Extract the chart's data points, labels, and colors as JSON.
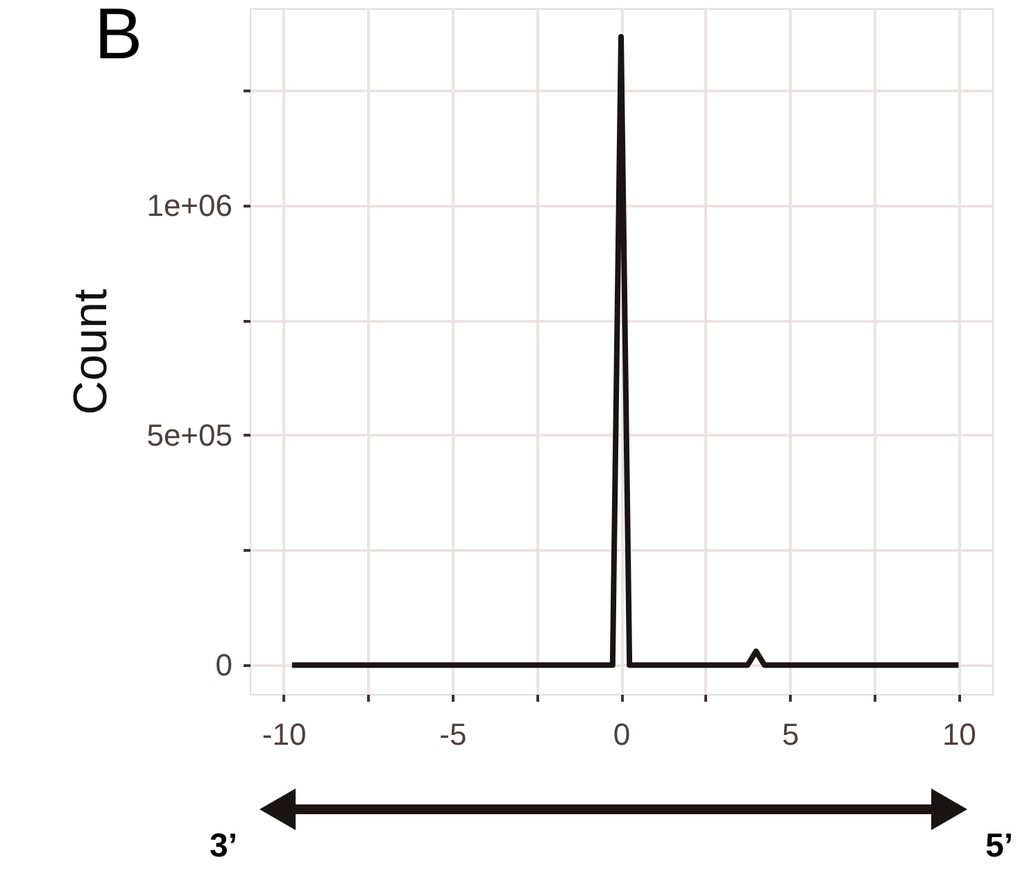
{
  "chart_data": {
    "type": "line",
    "title": "B",
    "ylabel": "Count",
    "x": [
      -9.75,
      -9,
      -8,
      -7,
      -6,
      -5,
      -4,
      -3,
      -2,
      -1,
      -0.25,
      0,
      0.25,
      1,
      2,
      3,
      3.75,
      4,
      4.25,
      5,
      6,
      7,
      8,
      9,
      10
    ],
    "series": [
      {
        "color": "#1a1512",
        "values": [
          0,
          0,
          0,
          0,
          0,
          0,
          0,
          0,
          0,
          0,
          0,
          1366000,
          0,
          0,
          0,
          0,
          0,
          30000,
          0,
          0,
          0,
          0,
          0,
          0,
          0
        ]
      }
    ],
    "xlim": [
      -11,
      11
    ],
    "xticks": [
      -10,
      {
        "value": -7.5,
        "label": null
      },
      -5,
      {
        "value": -2.5,
        "label": null
      },
      0,
      {
        "value": 2.5,
        "label": null
      },
      5,
      {
        "value": 7.5,
        "label": null
      },
      10
    ],
    "ylim": [
      -63000,
      1428000
    ],
    "yticks": [
      0,
      {
        "value": 250000,
        "label": null
      },
      {
        "value": 500000,
        "label": "5e+05"
      },
      {
        "value": 750000,
        "label": null
      },
      {
        "value": 1000000,
        "label": "1e+06"
      },
      {
        "value": 1250000,
        "label": null
      }
    ],
    "annotations": [
      "3’",
      "5’"
    ],
    "grid": true,
    "marker": "none",
    "line_style": "solid"
  }
}
